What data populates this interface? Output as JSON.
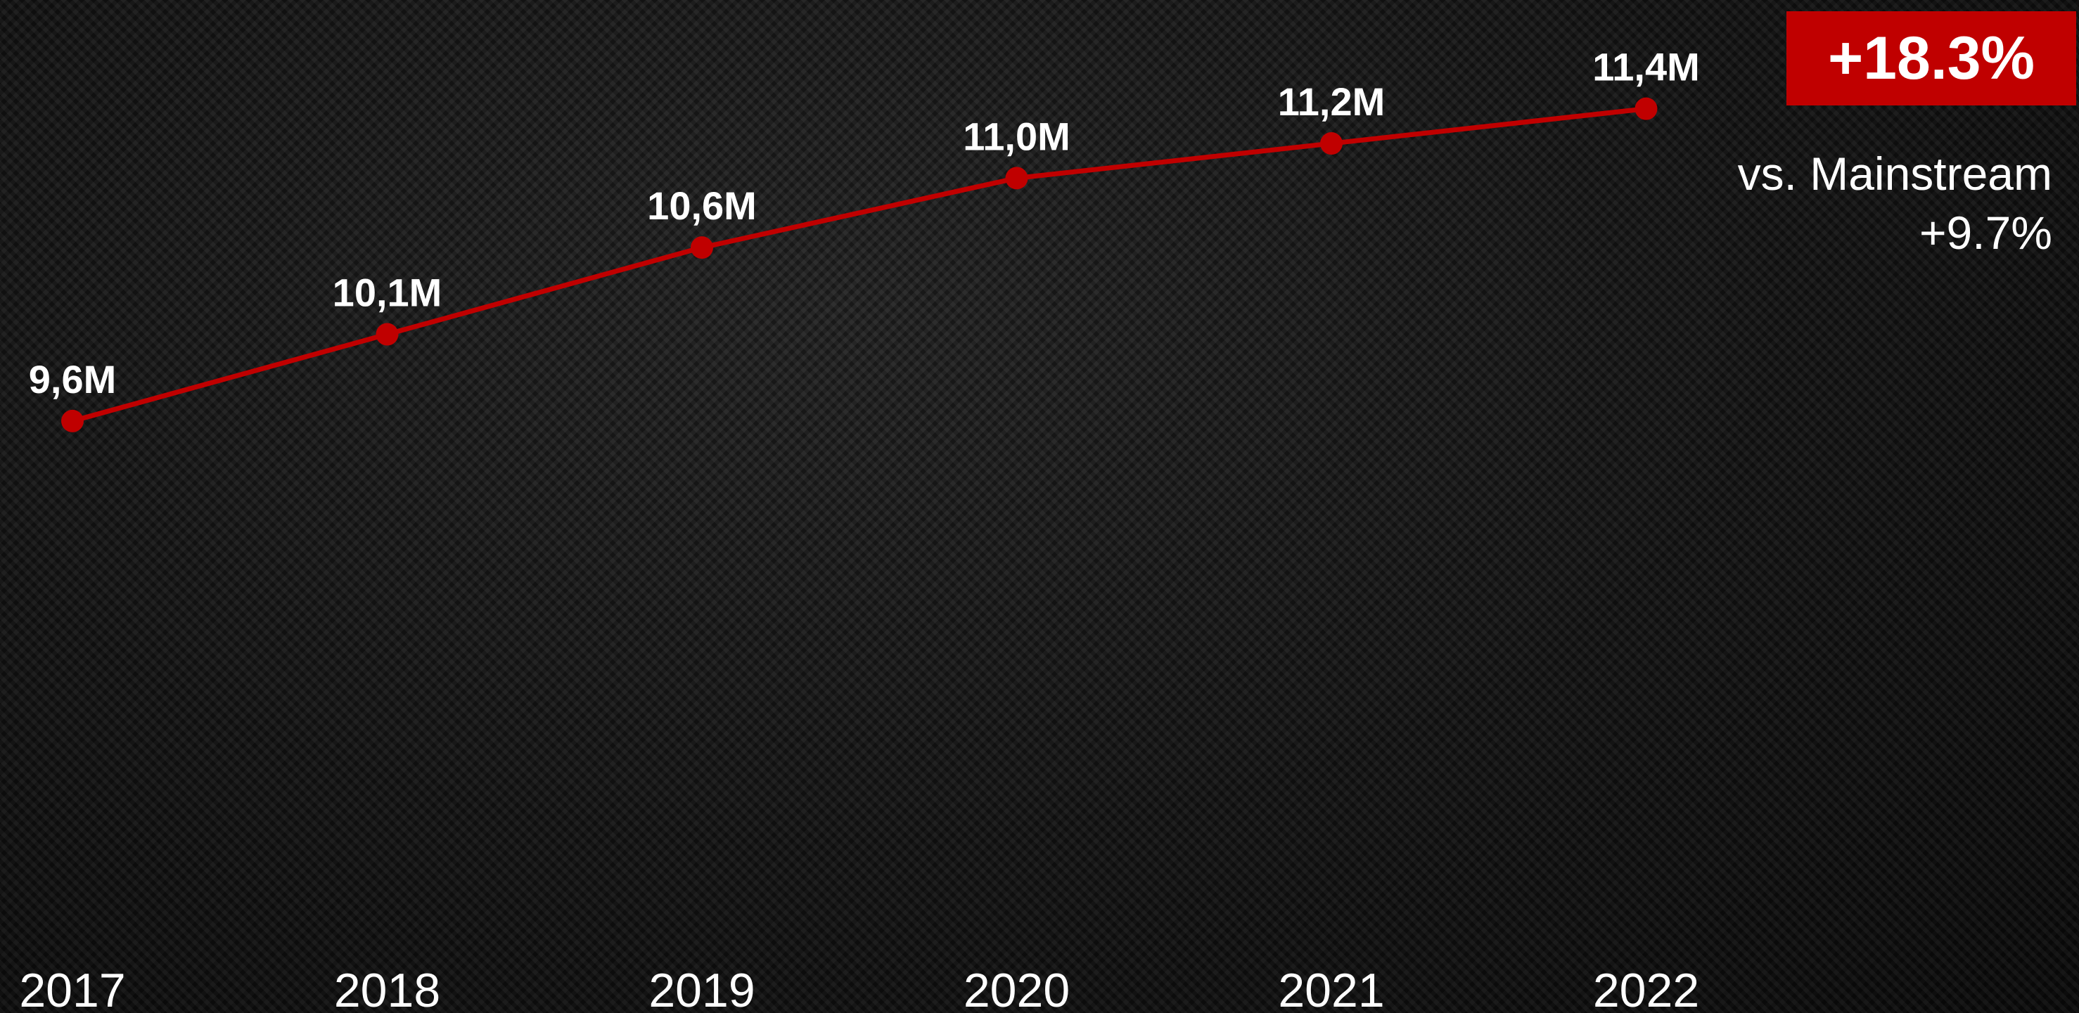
{
  "chart_data": {
    "type": "line",
    "title": "",
    "xlabel": "",
    "ylabel": "",
    "categories": [
      "2017",
      "2018",
      "2019",
      "2020",
      "2021",
      "2022"
    ],
    "series": [
      {
        "values": [
          9.6,
          10.1,
          10.6,
          11.0,
          11.2,
          11.4
        ],
        "data_labels": [
          "9,6M",
          "10,1M",
          "10,6M",
          "11,0M",
          "11,2M",
          "11,4M"
        ],
        "color": "#c00000"
      }
    ],
    "ylim": [
      6.8,
      11.5
    ],
    "grid": false,
    "legend": "none"
  },
  "badge": {
    "text": "+18.3%",
    "color": "#c00000"
  },
  "comparison": {
    "line1": "vs. Mainstream",
    "line2": "+9.7%"
  },
  "colors": {
    "background": "#111111",
    "accent": "#c00000",
    "text": "#ffffff"
  }
}
